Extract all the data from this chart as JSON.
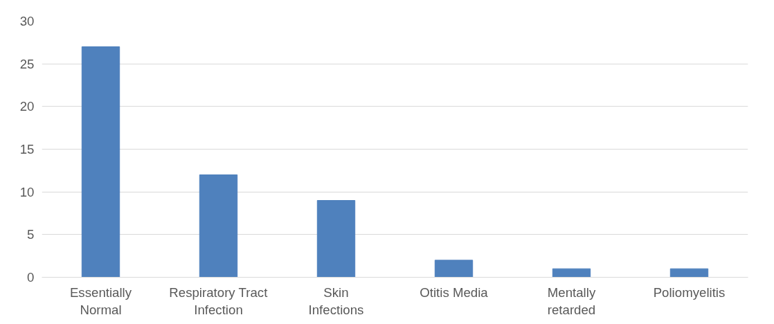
{
  "chart_data": {
    "type": "bar",
    "categories": [
      "Essentially Normal",
      "Respiratory Tract Infection",
      "Skin Infections",
      "Otitis Media",
      "Mentally retarded",
      "Poliomyelitis"
    ],
    "values": [
      27,
      12,
      9,
      2,
      1,
      1
    ],
    "color": "#4f81bd",
    "ylim": [
      0,
      30
    ],
    "yticks": [
      0,
      5,
      10,
      15,
      20,
      25,
      30
    ],
    "grid": "y"
  }
}
